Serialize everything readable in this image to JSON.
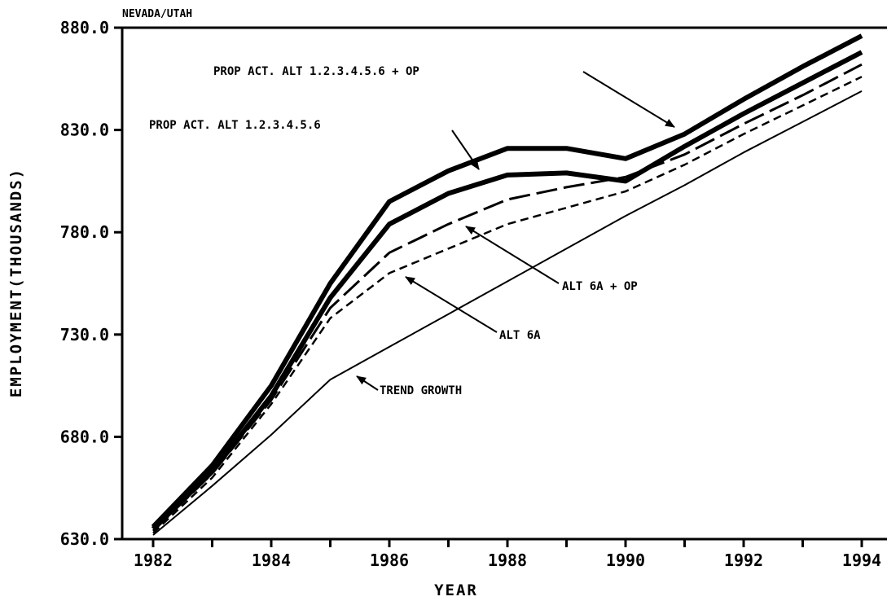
{
  "chart_data": {
    "type": "line",
    "title": "NEVADA/UTAH",
    "xlabel": "YEAR",
    "ylabel": "EMPLOYMENT(THOUSANDS)",
    "xlim": [
      1982,
      1994
    ],
    "ylim": [
      630,
      880
    ],
    "x_ticks": [
      1982,
      1984,
      1986,
      1988,
      1990,
      1992,
      1994
    ],
    "y_ticks": [
      "630.0",
      "680.0",
      "730.0",
      "780.0",
      "830.0",
      "880.0"
    ],
    "grid": false,
    "x": [
      1982,
      1983,
      1984,
      1985,
      1986,
      1987,
      1988,
      1989,
      1990,
      1991,
      1992,
      1993,
      1994
    ],
    "series": [
      {
        "name": "PROP ACT. ALT 1.2.3.4.5.6 + OP",
        "style": "thick",
        "values": [
          636,
          666,
          705,
          755,
          795,
          810,
          821,
          821,
          816,
          828,
          845,
          861,
          876
        ]
      },
      {
        "name": "PROP ACT. ALT 1.2.3.4.5.6",
        "style": "thick",
        "values": [
          635,
          663,
          700,
          748,
          784,
          799,
          808,
          809,
          805,
          822,
          838,
          853,
          868
        ]
      },
      {
        "name": "ALT 6A + OP",
        "style": "longdash",
        "values": [
          634,
          662,
          698,
          743,
          770,
          784,
          796,
          802,
          807,
          818,
          833,
          847,
          862
        ]
      },
      {
        "name": "ALT 6A",
        "style": "shortdash",
        "values": [
          633,
          660,
          696,
          738,
          760,
          772,
          784,
          792,
          800,
          813,
          828,
          842,
          856
        ]
      },
      {
        "name": "TREND GROWTH",
        "style": "thin",
        "values": [
          632,
          656,
          681,
          708,
          724,
          740,
          756,
          772,
          788,
          803,
          819,
          834,
          849
        ]
      }
    ],
    "annotations": [
      {
        "text": "PROP ACT. ALT 1.2.3.4.5.6 + OP",
        "series": 0
      },
      {
        "text": "PROP ACT. ALT 1.2.3.4.5.6",
        "series": 1
      },
      {
        "text": "ALT 6A + OP",
        "series": 2
      },
      {
        "text": "ALT 6A",
        "series": 3
      },
      {
        "text": "TREND GROWTH",
        "series": 4
      }
    ]
  }
}
